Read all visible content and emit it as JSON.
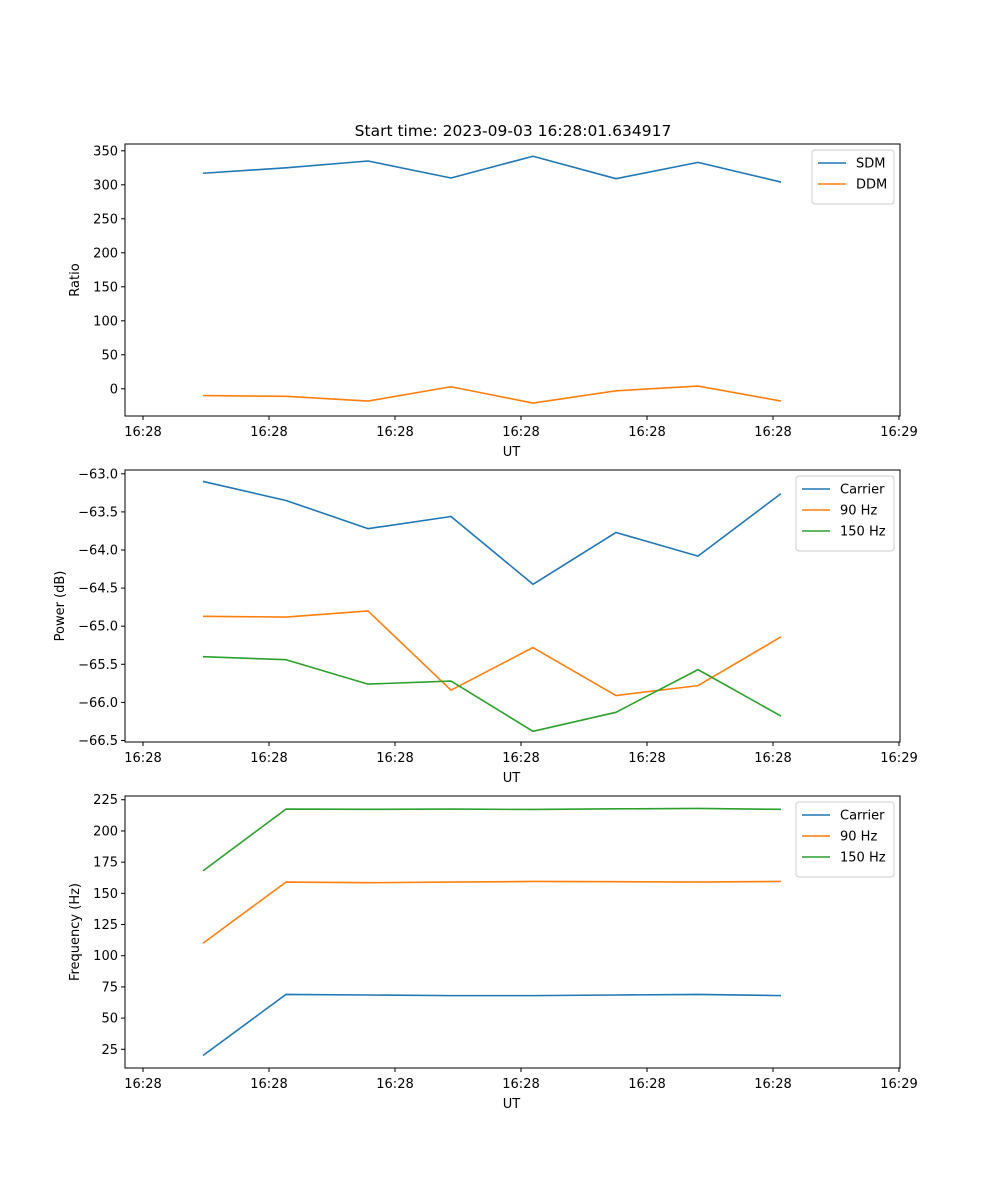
{
  "title": "Start time: 2023-09-03 16:28:01.634917",
  "colors": {
    "series1": "#1f77b4",
    "series2": "#ff7f0e",
    "series3": "#2ca02c"
  },
  "chart_data": [
    {
      "type": "line",
      "xlabel": "UT",
      "ylabel": "Ratio",
      "x_tick_labels": [
        "16:28",
        "16:28",
        "16:28",
        "16:28",
        "16:28",
        "16:28",
        "16:28",
        "16:29"
      ],
      "y_ticks": [
        0,
        50,
        100,
        150,
        200,
        250,
        300,
        350
      ],
      "y_tick_labels": [
        "0",
        "50",
        "100",
        "150",
        "200",
        "250",
        "300",
        "350"
      ],
      "ylim": [
        -40,
        360
      ],
      "legend": "top-right",
      "series": [
        {
          "name": "SDM",
          "values": [
            317,
            325,
            335,
            310,
            342,
            309,
            333,
            304
          ]
        },
        {
          "name": "DDM",
          "values": [
            -10,
            -11,
            -18,
            3,
            -21,
            -3,
            4,
            -18
          ]
        }
      ]
    },
    {
      "type": "line",
      "xlabel": "UT",
      "ylabel": "Power (dB)",
      "x_tick_labels": [
        "16:28",
        "16:28",
        "16:28",
        "16:28",
        "16:28",
        "16:28",
        "16:28",
        "16:29"
      ],
      "y_ticks": [
        -66.5,
        -66.0,
        -65.5,
        -65.0,
        -64.5,
        -64.0,
        -63.5,
        -63.0
      ],
      "y_tick_labels": [
        "−66.5",
        "−66.0",
        "−65.5",
        "−65.0",
        "−64.5",
        "−64.0",
        "−63.5",
        "−63.0"
      ],
      "ylim": [
        -66.52,
        -62.95
      ],
      "legend": "top-right",
      "series": [
        {
          "name": "Carrier",
          "values": [
            -63.1,
            -63.35,
            -63.72,
            -63.56,
            -64.45,
            -63.77,
            -64.08,
            -63.26
          ]
        },
        {
          "name": "90 Hz",
          "values": [
            -64.87,
            -64.88,
            -64.8,
            -65.84,
            -65.28,
            -65.91,
            -65.78,
            -65.14
          ]
        },
        {
          "name": "150 Hz",
          "values": [
            -65.4,
            -65.44,
            -65.76,
            -65.72,
            -66.38,
            -66.13,
            -65.57,
            -66.18
          ]
        }
      ]
    },
    {
      "type": "line",
      "xlabel": "UT",
      "ylabel": "Frequency (Hz)",
      "x_tick_labels": [
        "16:28",
        "16:28",
        "16:28",
        "16:28",
        "16:28",
        "16:28",
        "16:28",
        "16:29"
      ],
      "y_ticks": [
        25,
        50,
        75,
        100,
        125,
        150,
        175,
        200,
        225
      ],
      "y_tick_labels": [
        "25",
        "50",
        "75",
        "100",
        "125",
        "150",
        "175",
        "200",
        "225"
      ],
      "ylim": [
        10,
        228
      ],
      "legend": "top-right",
      "series": [
        {
          "name": "Carrier",
          "values": [
            20,
            69,
            68.5,
            68,
            68,
            68.5,
            69,
            68
          ]
        },
        {
          "name": "90 Hz",
          "values": [
            110,
            159,
            158.5,
            159,
            159.5,
            159.3,
            159,
            159.5
          ]
        },
        {
          "name": "150 Hz",
          "values": [
            168,
            217.5,
            217.3,
            217.5,
            217.2,
            217.7,
            218,
            217.3
          ]
        }
      ]
    }
  ]
}
